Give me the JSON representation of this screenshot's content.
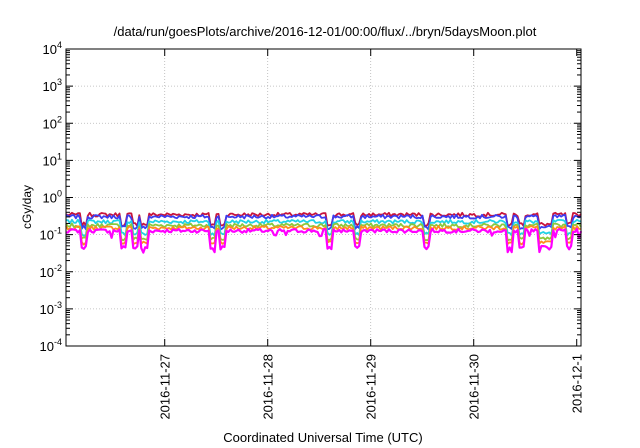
{
  "chart_data": {
    "type": "line",
    "title": "/data/run/goesPlots/archive/2016-12-01/00:00/flux/../bryn/5daysMoon.plot",
    "xlabel": "Coordinated Universal Time (UTC)",
    "ylabel": "cGy/day",
    "yscale": "log",
    "ylim": [
      0.0001,
      10000
    ],
    "y_ticks": [
      {
        "value": 0.0001,
        "base": "10",
        "exp": "-4"
      },
      {
        "value": 0.001,
        "base": "10",
        "exp": "-3"
      },
      {
        "value": 0.01,
        "base": "10",
        "exp": "-2"
      },
      {
        "value": 0.1,
        "base": "10",
        "exp": "-1"
      },
      {
        "value": 1,
        "base": "10",
        "exp": "0"
      },
      {
        "value": 10,
        "base": "10",
        "exp": "1"
      },
      {
        "value": 100,
        "base": "10",
        "exp": "2"
      },
      {
        "value": 1000,
        "base": "10",
        "exp": "3"
      },
      {
        "value": 10000,
        "base": "10",
        "exp": "4"
      }
    ],
    "x_range": [
      "2016-11-26 01:00",
      "2016-12-01 01:00"
    ],
    "x_ticks": [
      "2016-11-27",
      "2016-11-28",
      "2016-11-29",
      "2016-11-30",
      "2016-12-1"
    ],
    "grid": true,
    "legend": "none",
    "series": [
      {
        "color": "#c8143c",
        "level": 0.34
      },
      {
        "color": "#3c3cf0",
        "level": 0.3
      },
      {
        "color": "#20d2e6",
        "level": 0.22
      },
      {
        "color": "#8cc83c",
        "level": 0.175
      },
      {
        "color": "#ff8c1e",
        "level": 0.15
      },
      {
        "color": "#ff00ff",
        "level": 0.125
      }
    ],
    "dips": [
      0.035,
      0.11,
      0.135,
      0.152,
      0.283,
      0.305,
      0.51,
      0.565,
      0.7,
      0.862,
      0.884,
      0.925,
      0.94,
      0.976
    ]
  }
}
